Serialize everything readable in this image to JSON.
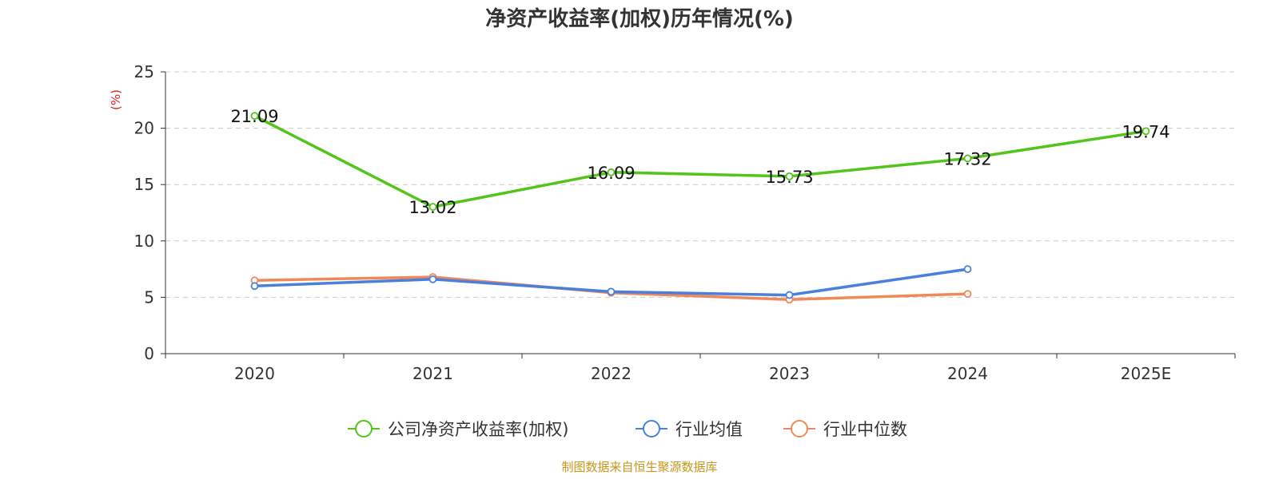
{
  "chart_data": {
    "type": "line",
    "title": "净资产收益率(加权)历年情况(%)",
    "ylabel": "(%)",
    "xlabel": "",
    "ylim": [
      0,
      25
    ],
    "yticks": [
      0,
      5,
      10,
      15,
      20,
      25
    ],
    "categories": [
      "2020",
      "2021",
      "2022",
      "2023",
      "2024",
      "2025E"
    ],
    "grid": true,
    "legend_position": "bottom",
    "series": [
      {
        "name": "公司净资产收益率(加权)",
        "color": "#52c41a",
        "values": [
          21.09,
          13.02,
          16.09,
          15.73,
          17.32,
          19.74
        ],
        "labels": [
          "21.09",
          "13.02",
          "16.09",
          "15.73",
          "17.32",
          "19.74"
        ]
      },
      {
        "name": "行业均值",
        "color": "#4a7fdc",
        "values": [
          6.0,
          6.6,
          5.5,
          5.2,
          7.5,
          null
        ]
      },
      {
        "name": "行业中位数",
        "color": "#f0895a",
        "values": [
          6.5,
          6.8,
          5.4,
          4.8,
          5.3,
          null
        ]
      }
    ],
    "source": "制图数据来自恒生聚源数据库",
    "source_color": "#c8961a",
    "unit_color": "#e02020"
  }
}
